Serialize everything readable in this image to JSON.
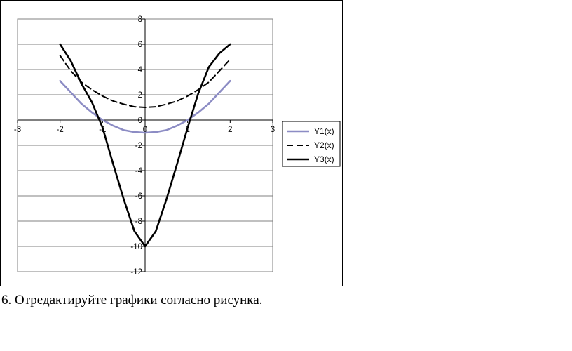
{
  "chart_data": {
    "type": "line",
    "title": "",
    "xlabel": "",
    "ylabel": "",
    "xlim": [
      -3,
      3
    ],
    "ylim": [
      -12,
      8
    ],
    "x_ticks": [
      "-3",
      "-2",
      "-1",
      "0",
      "1",
      "2",
      "3"
    ],
    "y_ticks": [
      "8",
      "6",
      "4",
      "2",
      "0",
      "-2",
      "-4",
      "-6",
      "-8",
      "-10",
      "-12"
    ],
    "grid": "horizontal",
    "legend_position": "right",
    "series": [
      {
        "name": "Y1(x)",
        "color": "#8c8cc4",
        "style": "solid",
        "x": [
          -2,
          -1.75,
          -1.5,
          -1.25,
          -1,
          -0.75,
          -0.5,
          -0.25,
          0,
          0.25,
          0.5,
          0.75,
          1,
          1.25,
          1.5,
          1.75,
          2
        ],
        "y": [
          3.1,
          2.2,
          1.3,
          0.6,
          0.0,
          -0.45,
          -0.8,
          -0.95,
          -1.0,
          -0.95,
          -0.8,
          -0.45,
          0.0,
          0.6,
          1.3,
          2.2,
          3.1
        ]
      },
      {
        "name": "Y2(x)",
        "color": "#000000",
        "style": "dashed",
        "x": [
          -2,
          -1.75,
          -1.5,
          -1.25,
          -1,
          -0.75,
          -0.5,
          -0.25,
          0,
          0.25,
          0.5,
          0.75,
          1,
          1.25,
          1.5,
          1.75,
          2
        ],
        "y": [
          5.1,
          3.9,
          3.0,
          2.4,
          1.9,
          1.5,
          1.25,
          1.05,
          1.0,
          1.05,
          1.25,
          1.5,
          1.9,
          2.4,
          3.0,
          3.9,
          4.8
        ]
      },
      {
        "name": "Y3(x)",
        "color": "#000000",
        "style": "solid",
        "x": [
          -2,
          -1.75,
          -1.5,
          -1.25,
          -1,
          -0.75,
          -0.5,
          -0.25,
          0,
          0.25,
          0.5,
          0.75,
          1,
          1.25,
          1.5,
          1.75,
          2
        ],
        "y": [
          6.0,
          4.7,
          2.9,
          1.4,
          -0.6,
          -3.5,
          -6.3,
          -8.8,
          -10.0,
          -8.8,
          -6.3,
          -3.5,
          -0.6,
          2.1,
          4.2,
          5.3,
          6.0
        ]
      }
    ]
  },
  "caption": "6. Отредактируйте графики согласно рисунка."
}
